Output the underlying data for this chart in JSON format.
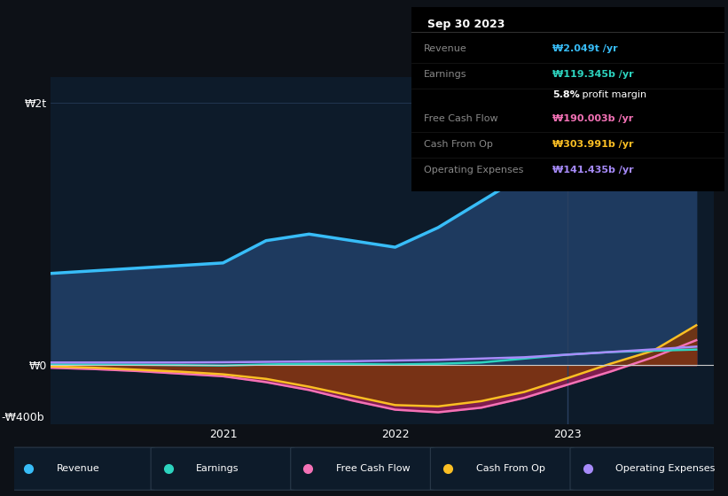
{
  "bg_color": "#0d1117",
  "plot_bg_color": "#0d1b2a",
  "ylabel_top": "₩2t",
  "ylabel_zero": "₩0",
  "ylabel_bottom": "-₩400b",
  "x_ticks": [
    "2021",
    "2022",
    "2023"
  ],
  "legend": [
    {
      "label": "Revenue",
      "color": "#38bdf8"
    },
    {
      "label": "Earnings",
      "color": "#2dd4bf"
    },
    {
      "label": "Free Cash Flow",
      "color": "#f472b6"
    },
    {
      "label": "Cash From Op",
      "color": "#fbbf24"
    },
    {
      "label": "Operating Expenses",
      "color": "#a78bfa"
    }
  ],
  "info_box_title": "Sep 30 2023",
  "info_rows": [
    {
      "label": "Revenue",
      "value": "₩2.049t /yr",
      "color": "#38bdf8"
    },
    {
      "label": "Earnings",
      "value": "₩119.345b /yr",
      "color": "#2dd4bf"
    },
    {
      "label": "",
      "value": "5.8% profit margin",
      "color": "#ffffff"
    },
    {
      "label": "Free Cash Flow",
      "value": "₩190.003b /yr",
      "color": "#f472b6"
    },
    {
      "label": "Cash From Op",
      "value": "₩303.991b /yr",
      "color": "#fbbf24"
    },
    {
      "label": "Operating Expenses",
      "value": "₩141.435b /yr",
      "color": "#a78bfa"
    }
  ],
  "revenue_x": [
    2020.0,
    2020.25,
    2020.5,
    2020.75,
    2021.0,
    2021.25,
    2021.5,
    2021.75,
    2022.0,
    2022.25,
    2022.5,
    2022.75,
    2023.0,
    2023.25,
    2023.5,
    2023.75
  ],
  "revenue_y": [
    700,
    720,
    740,
    760,
    780,
    950,
    1000,
    950,
    900,
    1050,
    1250,
    1450,
    1650,
    1850,
    1980,
    2049
  ],
  "earnings_x": [
    2020.0,
    2020.25,
    2020.5,
    2020.75,
    2021.0,
    2021.25,
    2021.5,
    2021.75,
    2022.0,
    2022.25,
    2022.5,
    2022.75,
    2023.0,
    2023.25,
    2023.5,
    2023.75
  ],
  "earnings_y": [
    5,
    5,
    3,
    0,
    -3,
    5,
    10,
    8,
    5,
    10,
    20,
    50,
    80,
    100,
    110,
    119
  ],
  "fcf_x": [
    2020.0,
    2020.25,
    2020.5,
    2020.75,
    2021.0,
    2021.25,
    2021.5,
    2021.75,
    2022.0,
    2022.25,
    2022.5,
    2022.75,
    2023.0,
    2023.25,
    2023.5,
    2023.75
  ],
  "fcf_y": [
    -20,
    -30,
    -45,
    -65,
    -85,
    -130,
    -190,
    -270,
    -340,
    -360,
    -325,
    -250,
    -150,
    -50,
    60,
    190
  ],
  "cfo_x": [
    2020.0,
    2020.25,
    2020.5,
    2020.75,
    2021.0,
    2021.25,
    2021.5,
    2021.75,
    2022.0,
    2022.25,
    2022.5,
    2022.75,
    2023.0,
    2023.25,
    2023.5,
    2023.75
  ],
  "cfo_y": [
    -10,
    -20,
    -35,
    -50,
    -70,
    -105,
    -165,
    -235,
    -305,
    -315,
    -275,
    -205,
    -100,
    10,
    110,
    304
  ],
  "oe_x": [
    2020.0,
    2020.25,
    2020.5,
    2020.75,
    2021.0,
    2021.25,
    2021.5,
    2021.75,
    2022.0,
    2022.25,
    2022.5,
    2022.75,
    2023.0,
    2023.25,
    2023.5,
    2023.75
  ],
  "oe_y": [
    20,
    20,
    20,
    20,
    22,
    25,
    28,
    30,
    35,
    40,
    50,
    60,
    80,
    100,
    120,
    141
  ],
  "rev_color": "#38bdf8",
  "rev_fill": "#1e3a5f",
  "earn_color": "#2dd4bf",
  "fcf_color": "#f472b6",
  "fcf_fill": "#7f1d4f",
  "cfo_color": "#fbbf24",
  "cfo_fill": "#78350f",
  "oe_color": "#a78bfa",
  "ylim": [
    -450,
    2200
  ],
  "xlim": [
    2020.0,
    2023.85
  ]
}
